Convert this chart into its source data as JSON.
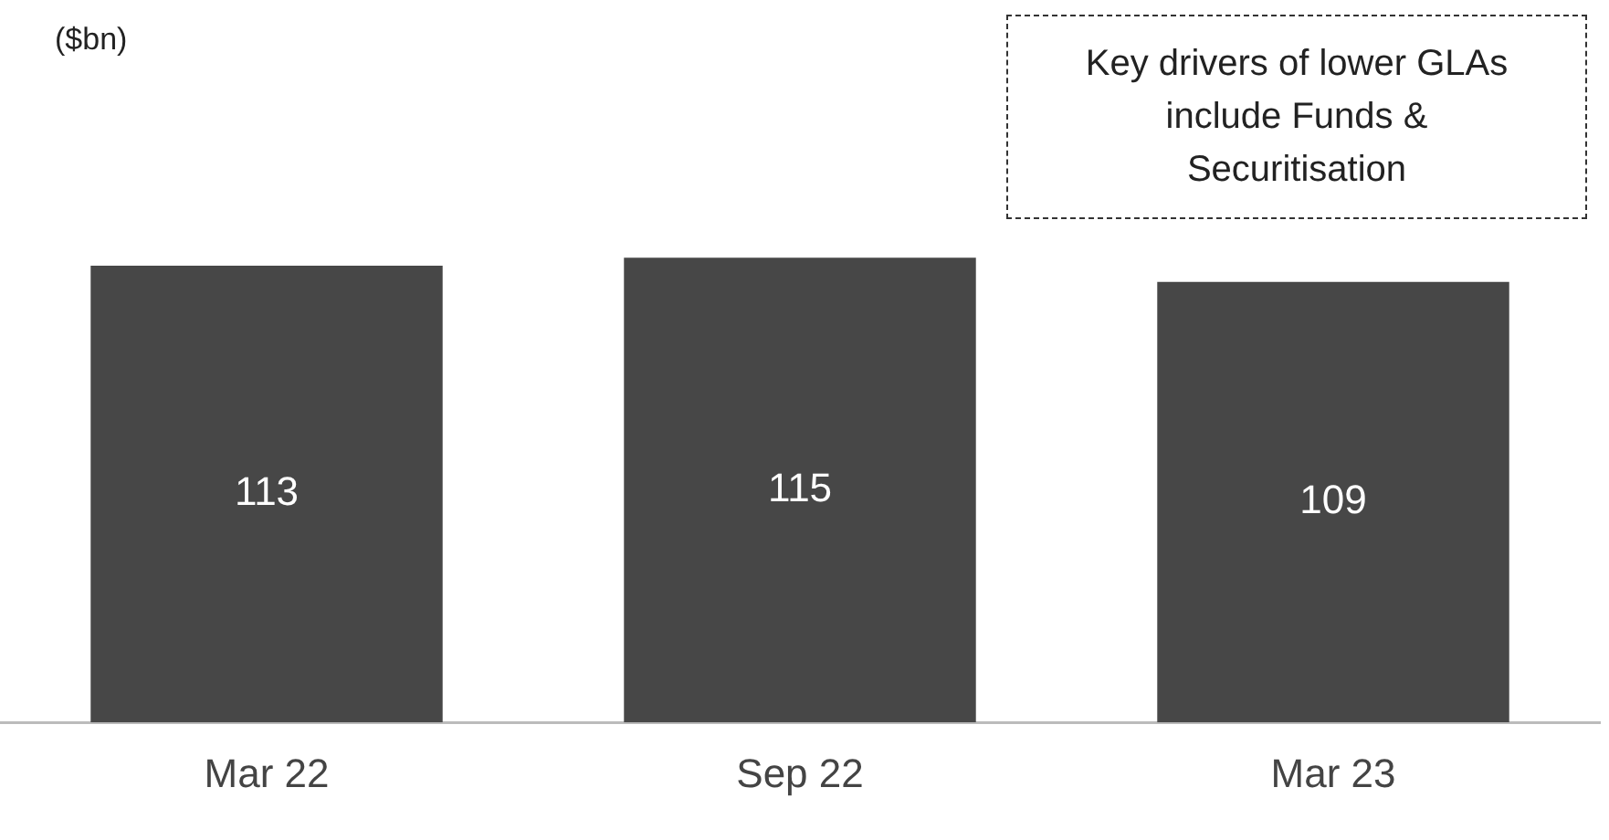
{
  "chart_data": {
    "type": "bar",
    "categories": [
      "Mar 22",
      "Sep 22",
      "Mar 23"
    ],
    "values": [
      113,
      115,
      109
    ],
    "color": "#474747",
    "data_labels": true,
    "grid": false,
    "legend": false,
    "annotations": [
      "($bn)",
      "Key drivers of lower GLAs include Funds & Securitisation"
    ]
  }
}
